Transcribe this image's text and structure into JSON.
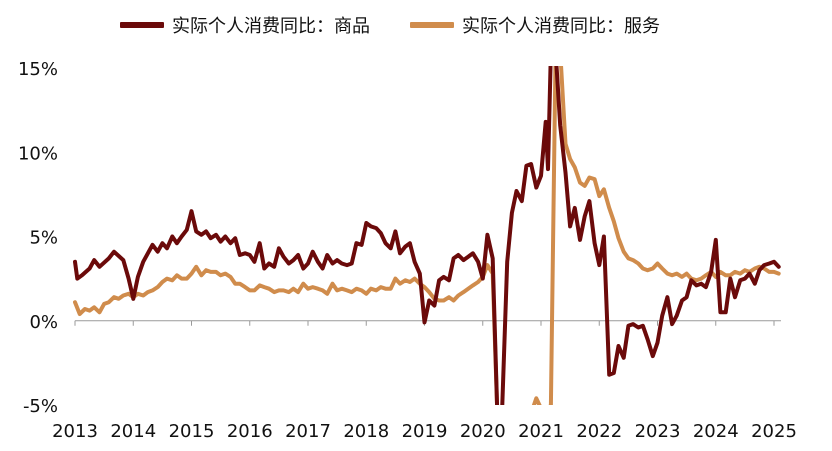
{
  "chart_data": {
    "type": "line",
    "title": "",
    "xlabel": "",
    "ylabel": "",
    "ylim": [
      -5,
      15
    ],
    "xlim": [
      2013.0,
      2025.12
    ],
    "y_ticks": [
      -5,
      0,
      5,
      10,
      15
    ],
    "y_tick_labels": [
      "-5%",
      "0%",
      "5%",
      "10%",
      "15%"
    ],
    "x_ticks": [
      2013,
      2014,
      2015,
      2016,
      2017,
      2018,
      2019,
      2020,
      2021,
      2022,
      2023,
      2024,
      2025
    ],
    "x_tick_labels": [
      "2013",
      "2014",
      "2015",
      "2016",
      "2017",
      "2018",
      "2019",
      "2020",
      "2021",
      "2022",
      "2023",
      "2024",
      "2025"
    ],
    "grid": false,
    "legend_position": "top",
    "series": [
      {
        "name": "实际个人消费同比：商品",
        "color": "#6b0a0a",
        "points": [
          [
            2013.0,
            3.5
          ],
          [
            2013.04,
            2.5
          ],
          [
            2013.12,
            2.7
          ],
          [
            2013.25,
            3.1
          ],
          [
            2013.33,
            3.6
          ],
          [
            2013.42,
            3.2
          ],
          [
            2013.58,
            3.7
          ],
          [
            2013.67,
            4.1
          ],
          [
            2013.83,
            3.6
          ],
          [
            2013.92,
            2.5
          ],
          [
            2014.0,
            1.3
          ],
          [
            2014.08,
            2.6
          ],
          [
            2014.17,
            3.5
          ],
          [
            2014.33,
            4.5
          ],
          [
            2014.42,
            4.1
          ],
          [
            2014.5,
            4.6
          ],
          [
            2014.58,
            4.3
          ],
          [
            2014.67,
            5.0
          ],
          [
            2014.75,
            4.6
          ],
          [
            2014.83,
            5.0
          ],
          [
            2014.92,
            5.4
          ],
          [
            2015.0,
            6.5
          ],
          [
            2015.08,
            5.3
          ],
          [
            2015.17,
            5.1
          ],
          [
            2015.25,
            5.3
          ],
          [
            2015.33,
            4.9
          ],
          [
            2015.42,
            5.1
          ],
          [
            2015.5,
            4.7
          ],
          [
            2015.58,
            5.0
          ],
          [
            2015.67,
            4.6
          ],
          [
            2015.75,
            4.9
          ],
          [
            2015.83,
            3.9
          ],
          [
            2015.92,
            4.0
          ],
          [
            2016.0,
            3.9
          ],
          [
            2016.08,
            3.5
          ],
          [
            2016.17,
            4.6
          ],
          [
            2016.25,
            3.1
          ],
          [
            2016.33,
            3.4
          ],
          [
            2016.42,
            3.2
          ],
          [
            2016.5,
            4.3
          ],
          [
            2016.58,
            3.8
          ],
          [
            2016.67,
            3.4
          ],
          [
            2016.75,
            3.6
          ],
          [
            2016.83,
            3.9
          ],
          [
            2016.92,
            3.1
          ],
          [
            2017.0,
            3.4
          ],
          [
            2017.08,
            4.1
          ],
          [
            2017.17,
            3.5
          ],
          [
            2017.25,
            3.1
          ],
          [
            2017.33,
            3.9
          ],
          [
            2017.42,
            3.4
          ],
          [
            2017.5,
            3.6
          ],
          [
            2017.58,
            3.4
          ],
          [
            2017.67,
            3.3
          ],
          [
            2017.75,
            3.4
          ],
          [
            2017.83,
            4.6
          ],
          [
            2017.92,
            4.5
          ],
          [
            2018.0,
            5.8
          ],
          [
            2018.08,
            5.6
          ],
          [
            2018.17,
            5.5
          ],
          [
            2018.25,
            5.2
          ],
          [
            2018.33,
            4.6
          ],
          [
            2018.42,
            4.3
          ],
          [
            2018.5,
            5.3
          ],
          [
            2018.58,
            4.0
          ],
          [
            2018.67,
            4.4
          ],
          [
            2018.75,
            4.6
          ],
          [
            2018.83,
            3.5
          ],
          [
            2018.92,
            2.8
          ],
          [
            2019.0,
            -0.1
          ],
          [
            2019.08,
            1.2
          ],
          [
            2019.17,
            0.9
          ],
          [
            2019.25,
            2.4
          ],
          [
            2019.33,
            2.6
          ],
          [
            2019.42,
            2.4
          ],
          [
            2019.5,
            3.7
          ],
          [
            2019.58,
            3.9
          ],
          [
            2019.67,
            3.6
          ],
          [
            2019.75,
            3.8
          ],
          [
            2019.83,
            4.0
          ],
          [
            2019.92,
            3.5
          ],
          [
            2020.0,
            2.5
          ],
          [
            2020.08,
            5.1
          ],
          [
            2020.17,
            3.7
          ],
          [
            2020.25,
            -5.5
          ],
          [
            2020.33,
            -5.5
          ],
          [
            2020.42,
            3.5
          ],
          [
            2020.5,
            6.4
          ],
          [
            2020.58,
            7.7
          ],
          [
            2020.67,
            7.1
          ],
          [
            2020.75,
            9.2
          ],
          [
            2020.83,
            9.3
          ],
          [
            2020.92,
            7.9
          ],
          [
            2021.0,
            8.6
          ],
          [
            2021.08,
            11.8
          ],
          [
            2021.12,
            9.0
          ],
          [
            2021.17,
            16.0
          ],
          [
            2021.25,
            16.0
          ],
          [
            2021.33,
            11.6
          ],
          [
            2021.42,
            8.8
          ],
          [
            2021.5,
            5.6
          ],
          [
            2021.58,
            6.7
          ],
          [
            2021.67,
            4.8
          ],
          [
            2021.75,
            6.2
          ],
          [
            2021.83,
            7.1
          ],
          [
            2021.92,
            4.6
          ],
          [
            2022.0,
            3.3
          ],
          [
            2022.08,
            5.0
          ],
          [
            2022.17,
            -3.2
          ],
          [
            2022.25,
            -3.1
          ],
          [
            2022.33,
            -1.5
          ],
          [
            2022.42,
            -2.2
          ],
          [
            2022.5,
            -0.3
          ],
          [
            2022.58,
            -0.2
          ],
          [
            2022.67,
            -0.4
          ],
          [
            2022.75,
            -0.3
          ],
          [
            2022.83,
            -1.1
          ],
          [
            2022.92,
            -2.1
          ],
          [
            2023.0,
            -1.3
          ],
          [
            2023.08,
            0.3
          ],
          [
            2023.17,
            1.4
          ],
          [
            2023.25,
            -0.2
          ],
          [
            2023.33,
            0.3
          ],
          [
            2023.42,
            1.2
          ],
          [
            2023.5,
            1.4
          ],
          [
            2023.58,
            2.4
          ],
          [
            2023.67,
            2.1
          ],
          [
            2023.75,
            2.2
          ],
          [
            2023.83,
            2.0
          ],
          [
            2023.92,
            2.9
          ],
          [
            2024.0,
            4.8
          ],
          [
            2024.08,
            0.5
          ],
          [
            2024.17,
            0.5
          ],
          [
            2024.25,
            2.5
          ],
          [
            2024.33,
            1.4
          ],
          [
            2024.42,
            2.4
          ],
          [
            2024.5,
            2.5
          ],
          [
            2024.58,
            2.8
          ],
          [
            2024.67,
            2.2
          ],
          [
            2024.75,
            3.0
          ],
          [
            2024.83,
            3.3
          ],
          [
            2024.92,
            3.4
          ],
          [
            2025.0,
            3.5
          ],
          [
            2025.08,
            3.2
          ]
        ]
      },
      {
        "name": "实际个人消费同比：服务",
        "color": "#d08c4c",
        "points": [
          [
            2013.0,
            1.1
          ],
          [
            2013.08,
            0.4
          ],
          [
            2013.17,
            0.7
          ],
          [
            2013.25,
            0.6
          ],
          [
            2013.33,
            0.8
          ],
          [
            2013.42,
            0.5
          ],
          [
            2013.5,
            1.0
          ],
          [
            2013.58,
            1.1
          ],
          [
            2013.67,
            1.4
          ],
          [
            2013.75,
            1.3
          ],
          [
            2013.83,
            1.5
          ],
          [
            2013.92,
            1.6
          ],
          [
            2014.0,
            1.4
          ],
          [
            2014.08,
            1.6
          ],
          [
            2014.17,
            1.5
          ],
          [
            2014.25,
            1.7
          ],
          [
            2014.33,
            1.8
          ],
          [
            2014.42,
            2.0
          ],
          [
            2014.5,
            2.3
          ],
          [
            2014.58,
            2.5
          ],
          [
            2014.67,
            2.4
          ],
          [
            2014.75,
            2.7
          ],
          [
            2014.83,
            2.5
          ],
          [
            2014.92,
            2.5
          ],
          [
            2015.0,
            2.8
          ],
          [
            2015.08,
            3.2
          ],
          [
            2015.17,
            2.7
          ],
          [
            2015.25,
            3.0
          ],
          [
            2015.33,
            2.9
          ],
          [
            2015.42,
            2.9
          ],
          [
            2015.5,
            2.7
          ],
          [
            2015.58,
            2.8
          ],
          [
            2015.67,
            2.6
          ],
          [
            2015.75,
            2.2
          ],
          [
            2015.83,
            2.2
          ],
          [
            2015.92,
            2.0
          ],
          [
            2016.0,
            1.8
          ],
          [
            2016.08,
            1.8
          ],
          [
            2016.17,
            2.1
          ],
          [
            2016.25,
            2.0
          ],
          [
            2016.33,
            1.9
          ],
          [
            2016.42,
            1.7
          ],
          [
            2016.5,
            1.8
          ],
          [
            2016.58,
            1.8
          ],
          [
            2016.67,
            1.7
          ],
          [
            2016.75,
            1.9
          ],
          [
            2016.83,
            1.7
          ],
          [
            2016.92,
            2.2
          ],
          [
            2017.0,
            1.9
          ],
          [
            2017.08,
            2.0
          ],
          [
            2017.17,
            1.9
          ],
          [
            2017.25,
            1.8
          ],
          [
            2017.33,
            1.6
          ],
          [
            2017.42,
            2.2
          ],
          [
            2017.5,
            1.8
          ],
          [
            2017.58,
            1.9
          ],
          [
            2017.67,
            1.8
          ],
          [
            2017.75,
            1.7
          ],
          [
            2017.83,
            1.9
          ],
          [
            2017.92,
            1.8
          ],
          [
            2018.0,
            1.6
          ],
          [
            2018.08,
            1.9
          ],
          [
            2018.17,
            1.8
          ],
          [
            2018.25,
            2.0
          ],
          [
            2018.33,
            1.9
          ],
          [
            2018.42,
            1.9
          ],
          [
            2018.5,
            2.5
          ],
          [
            2018.58,
            2.2
          ],
          [
            2018.67,
            2.4
          ],
          [
            2018.75,
            2.3
          ],
          [
            2018.83,
            2.5
          ],
          [
            2018.92,
            2.2
          ],
          [
            2019.0,
            2.0
          ],
          [
            2019.08,
            1.7
          ],
          [
            2019.17,
            1.3
          ],
          [
            2019.25,
            1.2
          ],
          [
            2019.33,
            1.2
          ],
          [
            2019.42,
            1.4
          ],
          [
            2019.5,
            1.2
          ],
          [
            2019.58,
            1.5
          ],
          [
            2019.67,
            1.7
          ],
          [
            2019.75,
            1.9
          ],
          [
            2019.83,
            2.1
          ],
          [
            2019.92,
            2.3
          ],
          [
            2020.0,
            2.6
          ],
          [
            2020.08,
            3.3
          ],
          [
            2020.17,
            2.8
          ],
          [
            2020.25,
            -5.5
          ],
          [
            2020.33,
            -5.5
          ],
          [
            2020.42,
            -5.5
          ],
          [
            2020.5,
            -5.5
          ],
          [
            2020.58,
            -5.5
          ],
          [
            2020.67,
            -5.5
          ],
          [
            2020.75,
            -5.5
          ],
          [
            2020.83,
            -5.5
          ],
          [
            2020.92,
            -4.6
          ],
          [
            2021.0,
            -5.2
          ],
          [
            2021.08,
            -5.5
          ],
          [
            2021.17,
            -5.0
          ],
          [
            2021.25,
            16.0
          ],
          [
            2021.33,
            16.0
          ],
          [
            2021.42,
            10.5
          ],
          [
            2021.5,
            9.6
          ],
          [
            2021.58,
            9.1
          ],
          [
            2021.67,
            8.2
          ],
          [
            2021.75,
            8.0
          ],
          [
            2021.83,
            8.5
          ],
          [
            2021.92,
            8.4
          ],
          [
            2022.0,
            7.4
          ],
          [
            2022.08,
            7.8
          ],
          [
            2022.17,
            6.7
          ],
          [
            2022.25,
            5.9
          ],
          [
            2022.33,
            4.9
          ],
          [
            2022.42,
            4.1
          ],
          [
            2022.5,
            3.7
          ],
          [
            2022.58,
            3.6
          ],
          [
            2022.67,
            3.4
          ],
          [
            2022.75,
            3.1
          ],
          [
            2022.83,
            3.0
          ],
          [
            2022.92,
            3.1
          ],
          [
            2023.0,
            3.4
          ],
          [
            2023.08,
            3.1
          ],
          [
            2023.17,
            2.8
          ],
          [
            2023.25,
            2.7
          ],
          [
            2023.33,
            2.8
          ],
          [
            2023.42,
            2.6
          ],
          [
            2023.5,
            2.8
          ],
          [
            2023.58,
            2.5
          ],
          [
            2023.67,
            2.4
          ],
          [
            2023.75,
            2.5
          ],
          [
            2023.83,
            2.7
          ],
          [
            2023.92,
            2.9
          ],
          [
            2024.0,
            2.6
          ],
          [
            2024.08,
            2.9
          ],
          [
            2024.17,
            2.7
          ],
          [
            2024.25,
            2.7
          ],
          [
            2024.33,
            2.9
          ],
          [
            2024.42,
            2.8
          ],
          [
            2024.5,
            3.0
          ],
          [
            2024.58,
            2.9
          ],
          [
            2024.67,
            3.1
          ],
          [
            2024.75,
            3.2
          ],
          [
            2024.83,
            3.1
          ],
          [
            2024.92,
            2.9
          ],
          [
            2025.0,
            2.9
          ],
          [
            2025.08,
            2.8
          ]
        ]
      }
    ]
  }
}
